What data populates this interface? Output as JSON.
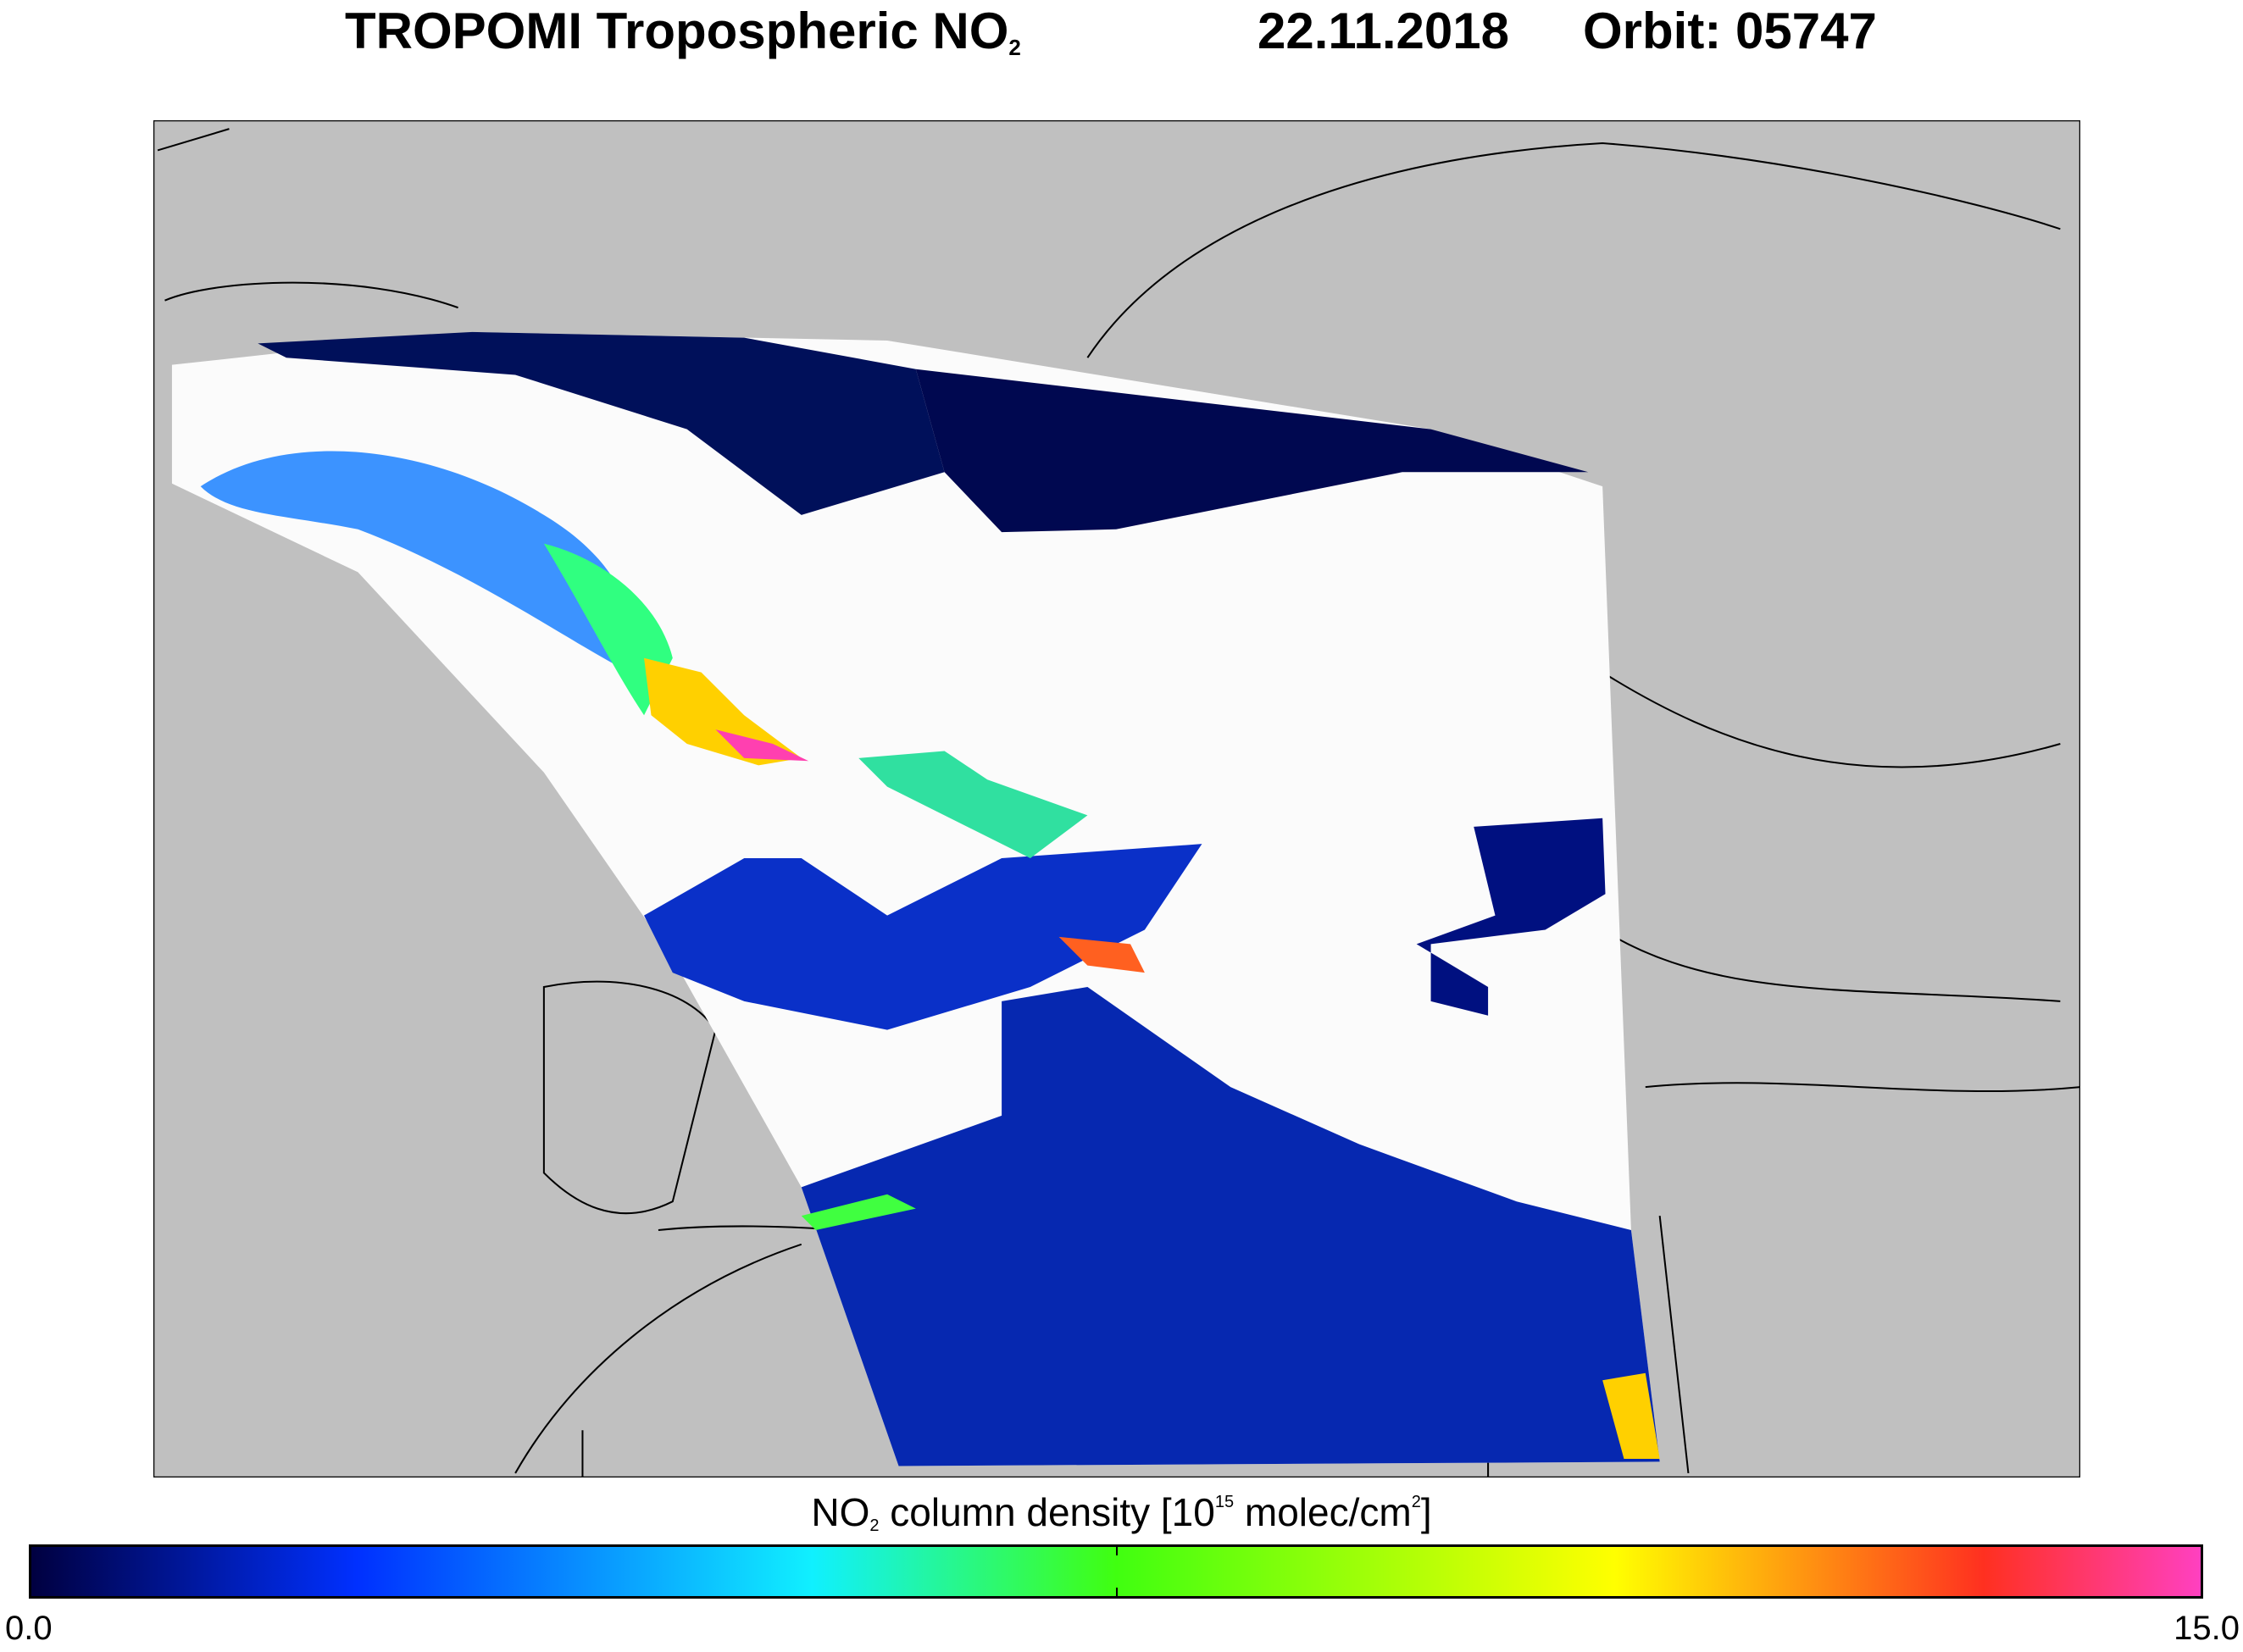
{
  "title": {
    "product": "TROPOMI Tropospheric NO",
    "product_sub": "2",
    "date": "22.11.2018",
    "orbit": "Orbit: 05747"
  },
  "chart_data": {
    "type": "heatmap",
    "title": "TROPOMI Tropospheric NO2  22.11.2018  Orbit: 05747",
    "description_region": "Europe / Mediterranean satellite swath map",
    "colorbar": {
      "label_pre": "NO",
      "label_sub": "2",
      "label_mid": " column density [10",
      "label_sup": "15",
      "label_post": " molec/cm",
      "label_sup2": "2",
      "label_end": "]",
      "min_label": "0.0",
      "max_label": "15.0",
      "range": [
        0.0,
        15.0
      ],
      "colors": [
        "#000040",
        "#0030ff",
        "#10f0ff",
        "#40ff10",
        "#ffff00",
        "#ff3020",
        "#ff40c0"
      ],
      "stops": [
        0,
        0.15,
        0.36,
        0.5,
        0.73,
        0.9,
        1
      ]
    },
    "colors": {
      "land": "#c0c0c0",
      "no_data_cloud": "#ffffff",
      "coast": "#000000"
    }
  }
}
